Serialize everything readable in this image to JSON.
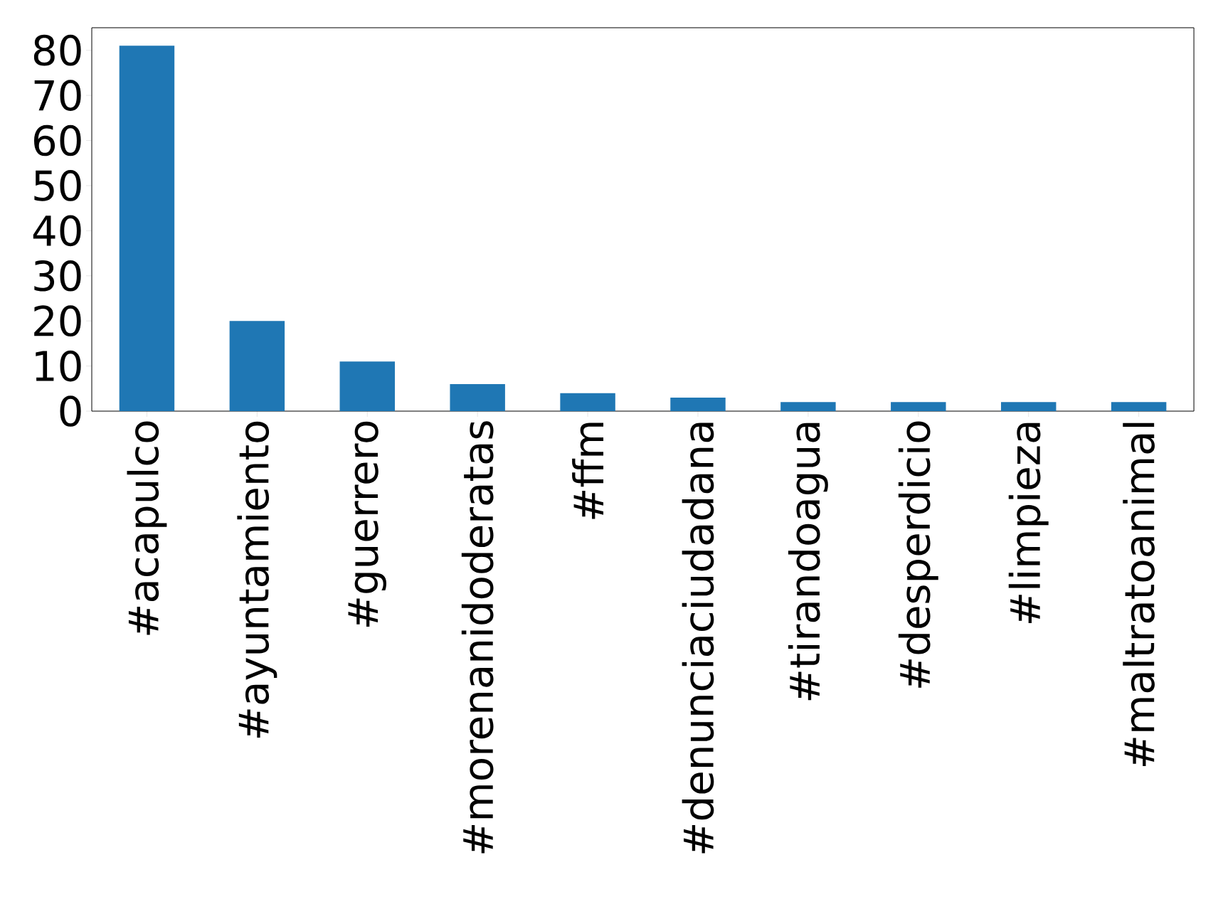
{
  "chart_data": {
    "type": "bar",
    "categories": [
      "#acapulco",
      "#ayuntamiento",
      "#guerrero",
      "#morenanidoderatas",
      "#ffm",
      "#denunciaciudadana",
      "#tirandoagua",
      "#desperdicio",
      "#limpieza",
      "#maltratoanimal"
    ],
    "values": [
      81,
      20,
      11,
      6,
      4,
      3,
      2,
      2,
      2,
      2
    ],
    "color": "#1f77b4",
    "ylim": [
      0,
      85
    ],
    "yticks": [
      0,
      10,
      20,
      30,
      40,
      50,
      60,
      70,
      80
    ]
  }
}
